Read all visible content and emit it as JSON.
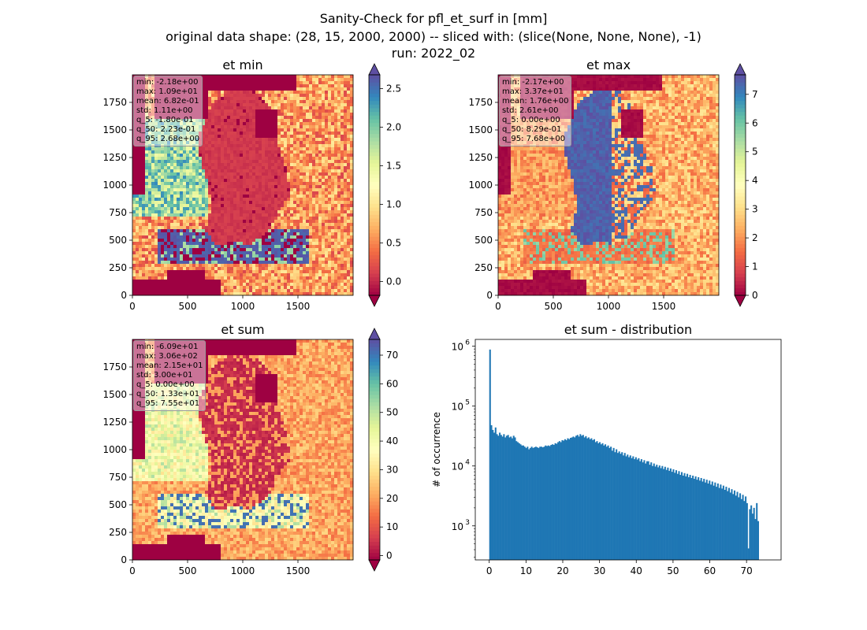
{
  "figure": {
    "title_lines": [
      "Sanity-Check for pfl_et_surf in [mm]",
      "original data shape: (28, 15, 2000, 2000) -- sliced with: (slice(None, None, None), -1)",
      "run: 2022_02"
    ]
  },
  "colors": {
    "histogram_bar": "#1f77b4",
    "axes": "#000000",
    "colormap": "Spectral",
    "ocean_dark_red": "#a50026"
  },
  "chart_data": [
    {
      "type": "heatmap",
      "title": "et min",
      "xlabel": "",
      "ylabel": "",
      "xlim": [
        0,
        2000
      ],
      "ylim": [
        0,
        2000
      ],
      "x_ticks": [
        0,
        500,
        1000,
        1500
      ],
      "y_ticks": [
        0,
        250,
        500,
        750,
        1000,
        1250,
        1500,
        1750
      ],
      "colorbar": {
        "min": -0.18,
        "max": 2.68,
        "ticks": [
          "0.0",
          "0.5",
          "1.0",
          "1.5",
          "2.0",
          "2.5"
        ],
        "extend": "both"
      },
      "stats": [
        "min: -2.18e+00",
        "max: 1.09e+01",
        "mean: 6.82e-01",
        "std: 1.11e+00",
        "q_5: -1.80e-01",
        "q_50: 2.23e-01",
        "q_95: 2.68e+00"
      ]
    },
    {
      "type": "heatmap",
      "title": "et max",
      "xlabel": "",
      "ylabel": "",
      "xlim": [
        0,
        2000
      ],
      "ylim": [
        0,
        2000
      ],
      "x_ticks": [
        0,
        500,
        1000,
        1500
      ],
      "y_ticks": [
        0,
        250,
        500,
        750,
        1000,
        1250,
        1500,
        1750
      ],
      "colorbar": {
        "min": 0.0,
        "max": 7.68,
        "ticks": [
          "0",
          "1",
          "2",
          "3",
          "4",
          "5",
          "6",
          "7"
        ],
        "extend": "both"
      },
      "stats": [
        "min: -2.17e+00",
        "max: 3.37e+01",
        "mean: 1.76e+00",
        "std: 2.61e+00",
        "q_5: 0.00e+00",
        "q_50: 8.29e-01",
        "q_95: 7.68e+00"
      ]
    },
    {
      "type": "heatmap",
      "title": "et sum",
      "xlabel": "",
      "ylabel": "",
      "xlim": [
        0,
        2000
      ],
      "ylim": [
        0,
        2000
      ],
      "x_ticks": [
        0,
        500,
        1000,
        1500
      ],
      "y_ticks": [
        0,
        250,
        500,
        750,
        1000,
        1250,
        1500,
        1750
      ],
      "colorbar": {
        "min": -1.5,
        "max": 75.5,
        "ticks": [
          "0",
          "10",
          "20",
          "30",
          "40",
          "50",
          "60",
          "70"
        ],
        "extend": "both"
      },
      "stats": [
        "min: -6.09e+01",
        "max: 3.06e+02",
        "mean: 2.15e+01",
        "std: 3.00e+01",
        "q_5: 0.00e+00",
        "q_50: 1.33e+01",
        "q_95: 7.55e+01"
      ]
    },
    {
      "type": "bar",
      "title": "et sum - distribution",
      "xlabel": "",
      "ylabel": "# of occurrence",
      "y_scale": "log",
      "xlim": [
        -3.8,
        79.4
      ],
      "ylim": [
        270,
        1300000
      ],
      "x_ticks": [
        0,
        10,
        20,
        30,
        40,
        50,
        60,
        70
      ],
      "y_tick_labels": [
        {
          "base": "10",
          "exp": "3"
        },
        {
          "base": "10",
          "exp": "4"
        },
        {
          "base": "10",
          "exp": "5"
        },
        {
          "base": "10",
          "exp": "6"
        }
      ],
      "y_tick_values": [
        1000,
        10000,
        100000,
        1000000
      ],
      "bin_start": 0.0,
      "bin_width": 0.378,
      "values": [
        880000,
        48000,
        40000,
        36000,
        44000,
        34000,
        32000,
        36000,
        33000,
        31000,
        34000,
        30000,
        32000,
        33000,
        30000,
        31000,
        29000,
        32000,
        30000,
        26000,
        25000,
        24000,
        23000,
        22000,
        22000,
        21000,
        20000,
        21000,
        19000,
        20000,
        21000,
        20000,
        20500,
        21000,
        20500,
        20000,
        21000,
        21000,
        20500,
        21000,
        22000,
        21500,
        22000,
        21500,
        22500,
        23000,
        22500,
        24000,
        23500,
        25000,
        26000,
        25000,
        27000,
        26500,
        28000,
        27000,
        29000,
        28000,
        29500,
        30000,
        31000,
        30000,
        32000,
        33000,
        31000,
        34000,
        32000,
        33000,
        30000,
        31500,
        29000,
        30000,
        28000,
        29000,
        27000,
        28000,
        25000,
        26000,
        24000,
        25000,
        23000,
        24000,
        22000,
        23000,
        21000,
        22000,
        20000,
        21000,
        18000,
        20000,
        17000,
        19000,
        16500,
        17500,
        16000,
        17000,
        15000,
        16500,
        14500,
        15500,
        14000,
        15000,
        13500,
        14500,
        13000,
        14000,
        12800,
        13500,
        12000,
        13000,
        11500,
        12500,
        11000,
        12000,
        12000,
        10500,
        11500,
        10000,
        11000,
        9800,
        10500,
        9500,
        10200,
        9200,
        10000,
        8900,
        9700,
        8600,
        9400,
        8300,
        9100,
        8000,
        8800,
        7700,
        8500,
        7400,
        8200,
        7100,
        7900,
        6900,
        7600,
        6700,
        7400,
        6500,
        7100,
        6300,
        6900,
        6100,
        6700,
        5900,
        6500,
        5700,
        6300,
        5500,
        6100,
        5300,
        5900,
        5100,
        5700,
        4900,
        5500,
        4700,
        5300,
        4500,
        5100,
        4300,
        4900,
        4200,
        4700,
        4000,
        4500,
        3800,
        4300,
        3600,
        4100,
        3400,
        3900,
        3200,
        3700,
        3000,
        3500,
        2800,
        3300,
        2600,
        3100,
        2400,
        420,
        1900,
        2200,
        1600,
        2000,
        1300,
        2400,
        1200
      ]
    }
  ]
}
